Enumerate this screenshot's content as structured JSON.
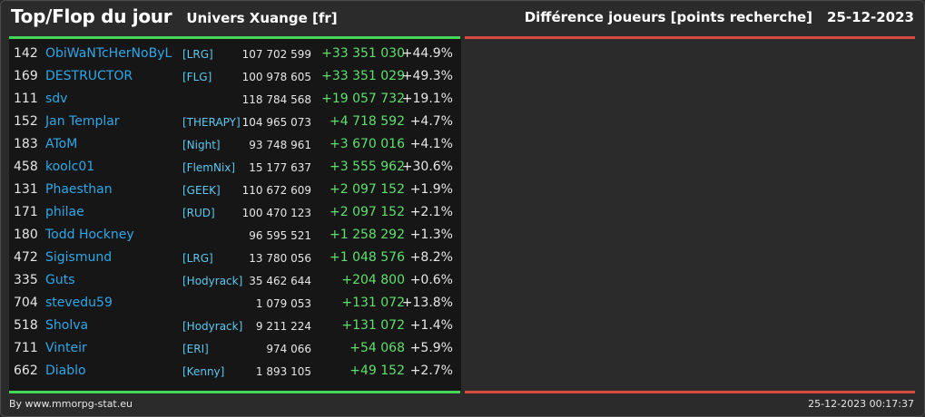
{
  "header": {
    "title": "Top/Flop du jour",
    "universe": "Univers Xuange [fr]",
    "metric": "Différence joueurs [points recherche]",
    "date": "25-12-2023"
  },
  "colors": {
    "background": "#2b2b2b",
    "panel": "#161616",
    "top_line": "#46d65a",
    "flop_line": "#d84a3f",
    "player_name": "#2ea8e8",
    "alliance": "#5cc8f0",
    "positive_diff": "#5fe06f"
  },
  "top_rows": [
    {
      "rank": "142",
      "name": "ObiWaNTcHerNoByL",
      "alliance": "[LRG]",
      "points": "107 702 599",
      "diff": "+33 351 030",
      "pct": "+44.9%"
    },
    {
      "rank": "169",
      "name": "DESTRUCTOR",
      "alliance": "[FLG]",
      "points": "100 978 605",
      "diff": "+33 351 029",
      "pct": "+49.3%"
    },
    {
      "rank": "111",
      "name": "sdv",
      "alliance": "",
      "points": "118 784 568",
      "diff": "+19 057 732",
      "pct": "+19.1%"
    },
    {
      "rank": "152",
      "name": "Jan Templar",
      "alliance": "[THERAPY]",
      "points": "104 965 073",
      "diff": "+4 718 592",
      "pct": "+4.7%"
    },
    {
      "rank": "183",
      "name": "AToM",
      "alliance": "[Night]",
      "points": "93 748 961",
      "diff": "+3 670 016",
      "pct": "+4.1%"
    },
    {
      "rank": "458",
      "name": "koolc01",
      "alliance": "[FlemNix]",
      "points": "15 177 637",
      "diff": "+3 555 962",
      "pct": "+30.6%"
    },
    {
      "rank": "131",
      "name": "Phaesthan",
      "alliance": "[GEEK]",
      "points": "110 672 609",
      "diff": "+2 097 152",
      "pct": "+1.9%"
    },
    {
      "rank": "171",
      "name": "philae",
      "alliance": "[RUD]",
      "points": "100 470 123",
      "diff": "+2 097 152",
      "pct": "+2.1%"
    },
    {
      "rank": "180",
      "name": "Todd Hockney",
      "alliance": "",
      "points": "96 595 521",
      "diff": "+1 258 292",
      "pct": "+1.3%"
    },
    {
      "rank": "472",
      "name": "Sigismund",
      "alliance": "[LRG]",
      "points": "13 780 056",
      "diff": "+1 048 576",
      "pct": "+8.2%"
    },
    {
      "rank": "335",
      "name": "Guts",
      "alliance": "[Hodyrack]",
      "points": "35 462 644",
      "diff": "+204 800",
      "pct": "+0.6%"
    },
    {
      "rank": "704",
      "name": "stevedu59",
      "alliance": "",
      "points": "1 079 053",
      "diff": "+131 072",
      "pct": "+13.8%"
    },
    {
      "rank": "518",
      "name": "Sholva",
      "alliance": "[Hodyrack]",
      "points": "9 211 224",
      "diff": "+131 072",
      "pct": "+1.4%"
    },
    {
      "rank": "711",
      "name": "Vinteir",
      "alliance": "[ERI]",
      "points": "974 066",
      "diff": "+54 068",
      "pct": "+5.9%"
    },
    {
      "rank": "662",
      "name": "Diablo",
      "alliance": "[Kenny]",
      "points": "1 893 105",
      "diff": "+49 152",
      "pct": "+2.7%"
    }
  ],
  "footer": {
    "credit": "By www.mmorpg-stat.eu",
    "timestamp": "25-12-2023 00:17:37"
  }
}
